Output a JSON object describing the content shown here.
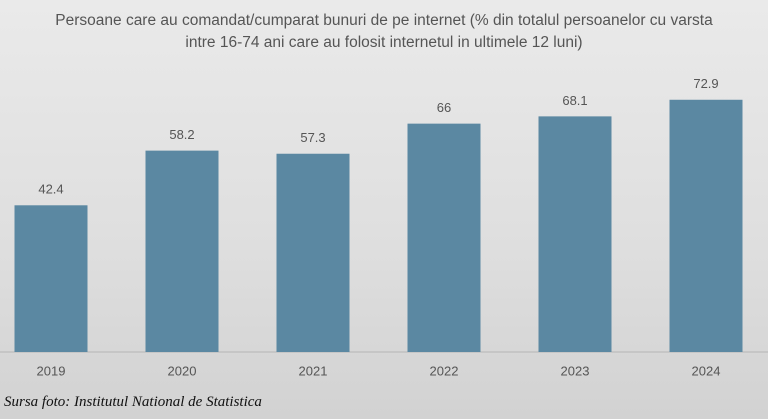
{
  "chart_data": {
    "type": "bar",
    "title": "Persoane care au comandat/cumparat bunuri de pe internet (% din totalul persoanelor cu varsta intre 16-74 ani care au folosit internetul in ultimele 12 luni)",
    "categories": [
      "2019",
      "2020",
      "2021",
      "2022",
      "2023",
      "2024"
    ],
    "values": [
      42.4,
      58.2,
      57.3,
      66,
      68.1,
      72.9
    ],
    "color": "#5b88a2",
    "ylim": [
      0,
      100
    ],
    "grid": false,
    "source": "Sursa foto: Institutul National de Statistica"
  }
}
